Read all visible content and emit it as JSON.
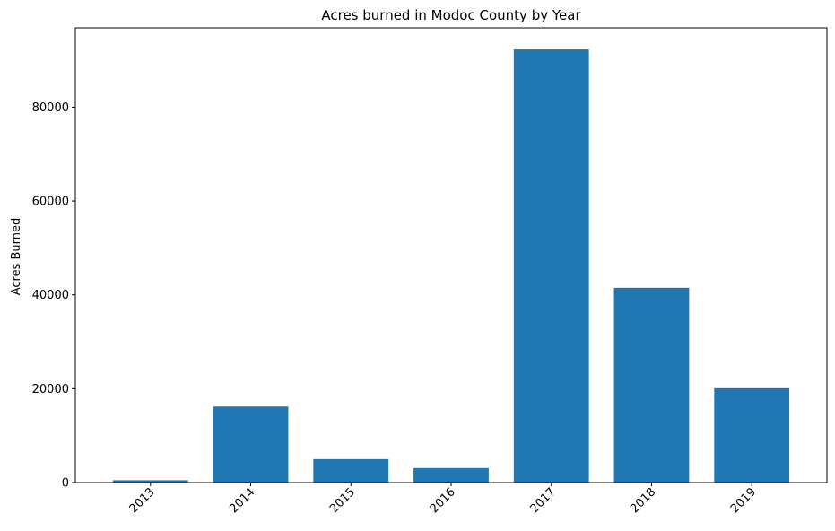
{
  "chart_data": {
    "type": "bar",
    "title": "Acres burned in Modoc County by Year",
    "xlabel": "",
    "ylabel": "Acres Burned",
    "categories": [
      "2013",
      "2014",
      "2015",
      "2016",
      "2017",
      "2018",
      "2019"
    ],
    "values": [
      500,
      16200,
      5000,
      3100,
      92300,
      41500,
      20100
    ],
    "ylim": [
      0,
      96900
    ],
    "yticks": [
      0,
      20000,
      40000,
      60000,
      80000
    ],
    "ytick_labels": [
      "0",
      "20000",
      "40000",
      "60000",
      "80000"
    ],
    "grid": false,
    "bar_color": "#1f77b4"
  }
}
